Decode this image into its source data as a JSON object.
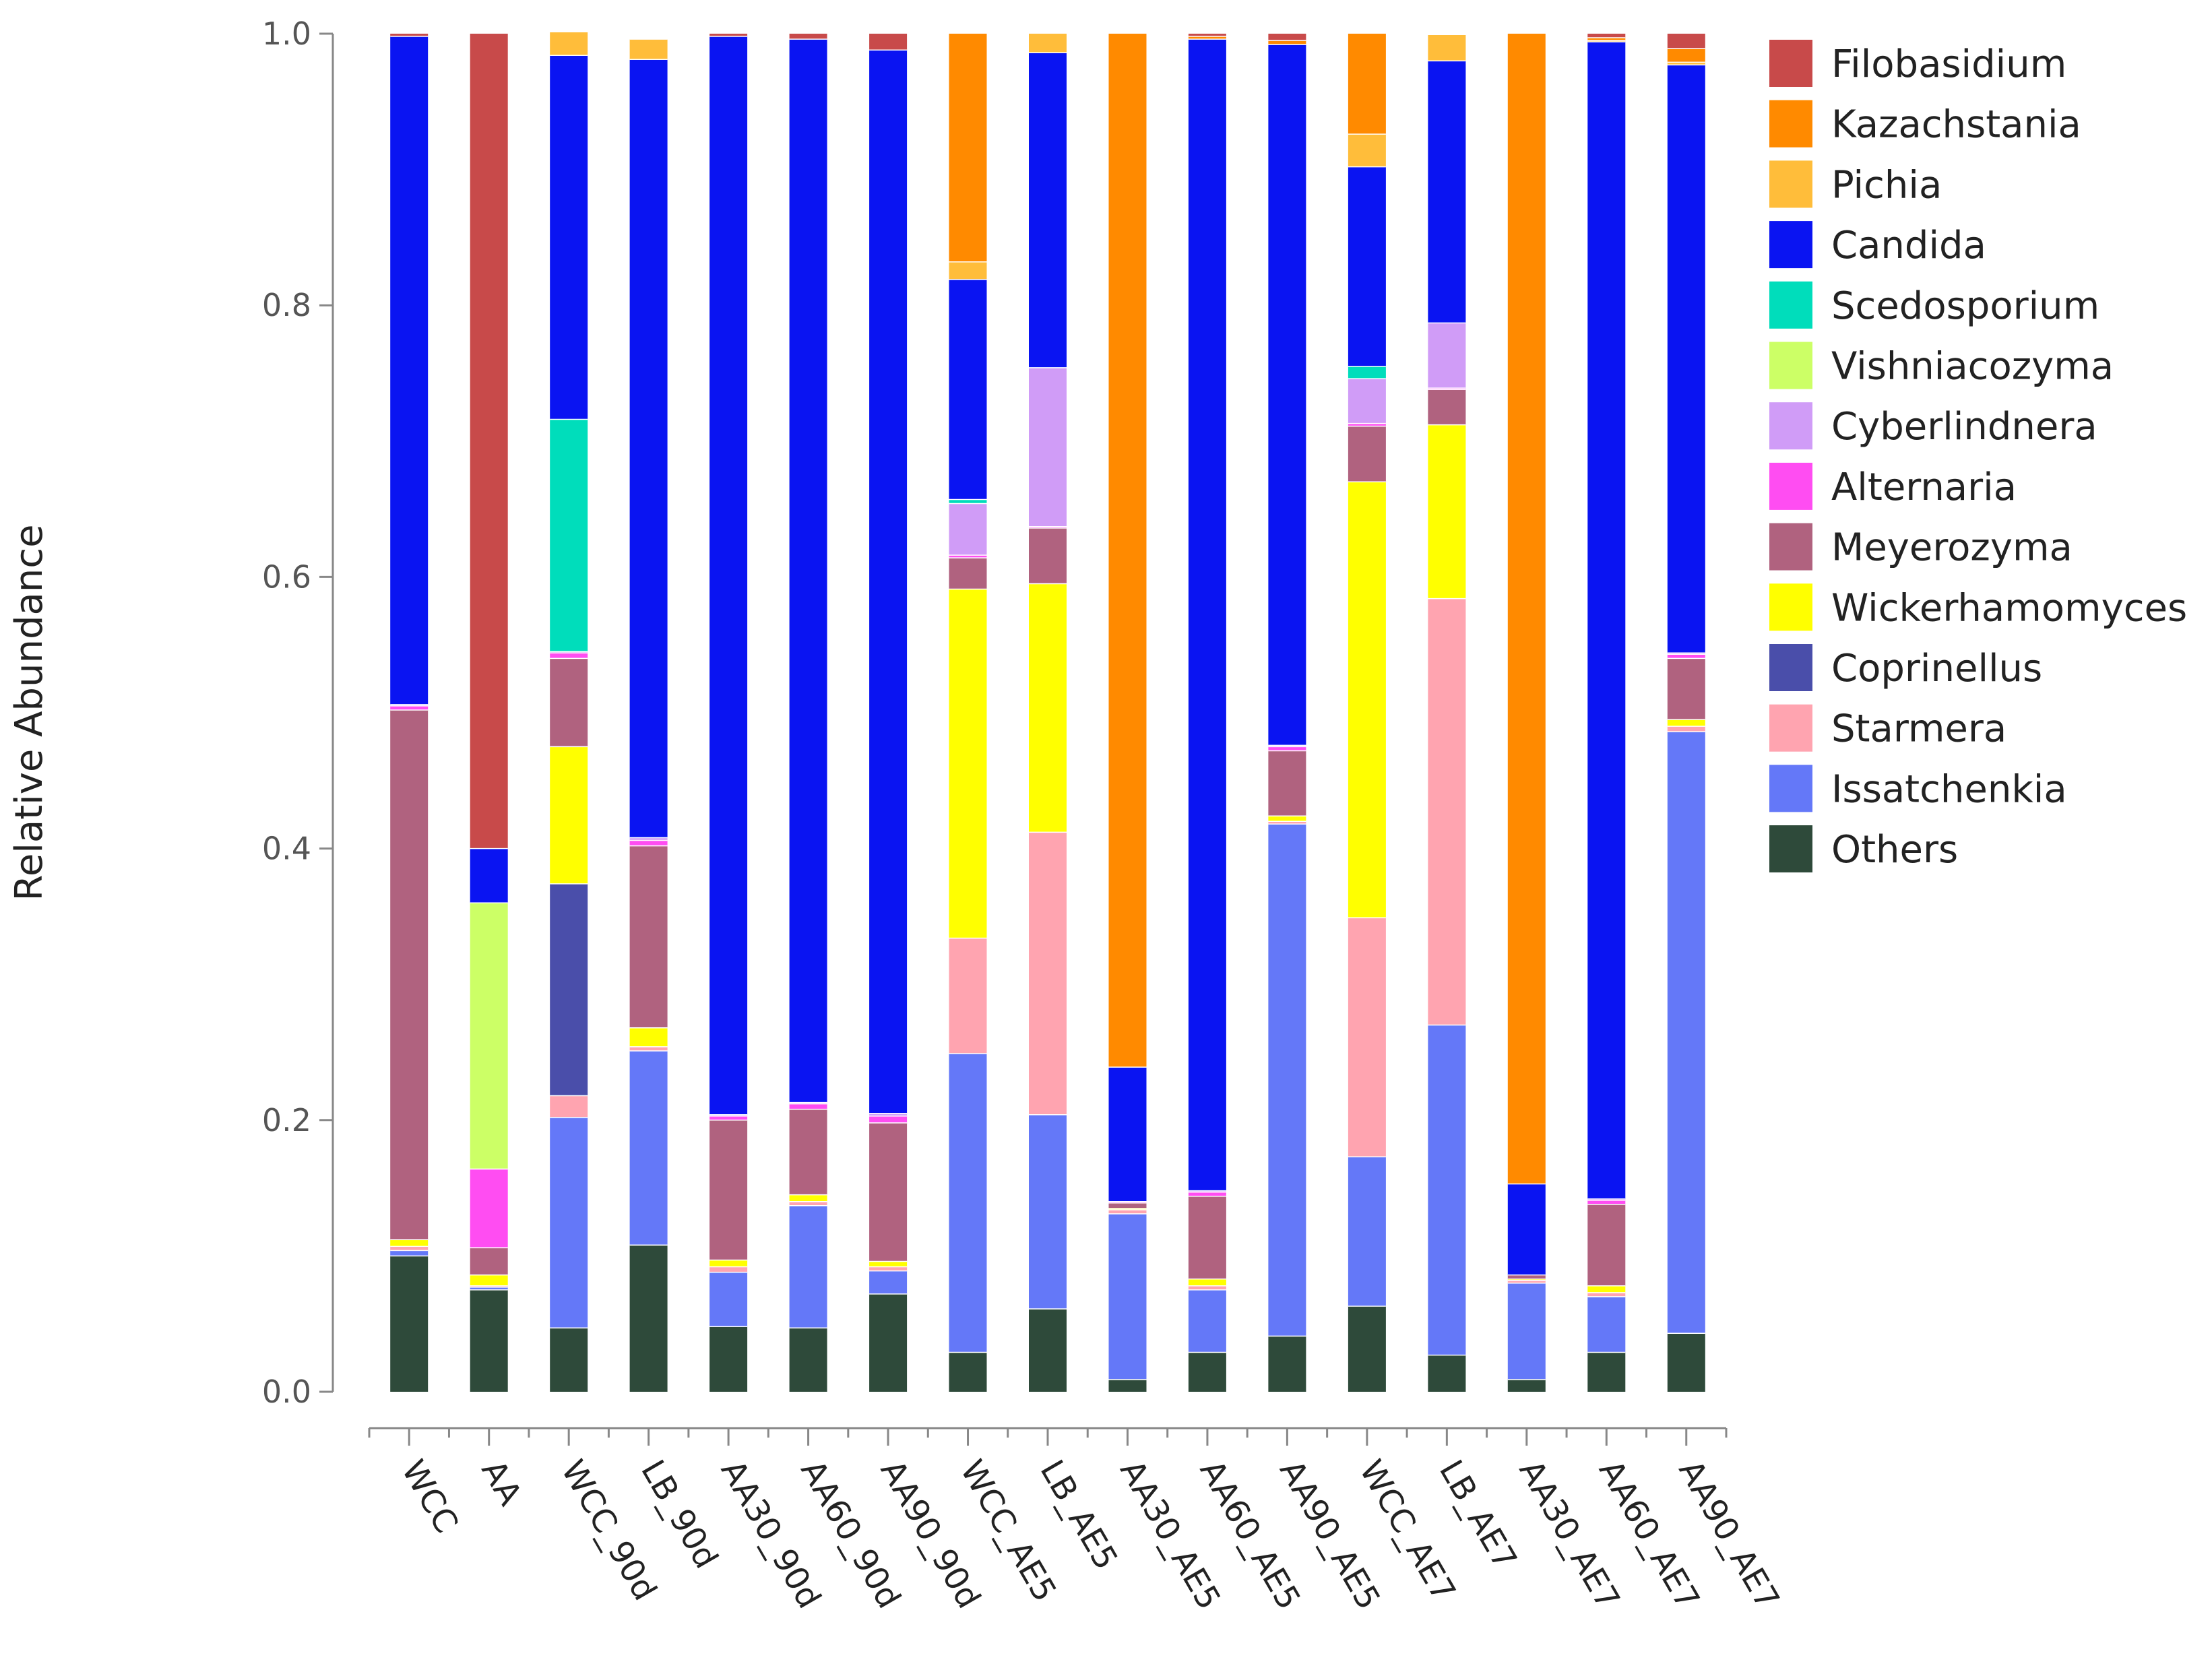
{
  "chart_data": {
    "type": "bar",
    "stacked": true,
    "title": "",
    "xlabel": "",
    "ylabel": "Relative Abundance",
    "ylim": [
      0,
      1
    ],
    "yticks": [
      "0.0",
      "0.2",
      "0.4",
      "0.6",
      "0.8",
      "1.0"
    ],
    "legend_position": "right",
    "categories": [
      "WCC",
      "AA",
      "WCC_90d",
      "LB_90d",
      "AA30_90d",
      "AA60_90d",
      "AA90_90d",
      "WCC_AE5",
      "LB_AE5",
      "AA30_AE5",
      "AA60_AE5",
      "AA90_AE5",
      "WCC_AE7",
      "LB_AE7",
      "AA30_AE7",
      "AA60_AE7",
      "AA90_AE7"
    ],
    "series": [
      {
        "name": "Others",
        "color": "#2e4a3a",
        "values": [
          0.1,
          0.075,
          0.047,
          0.108,
          0.048,
          0.047,
          0.072,
          0.029,
          0.061,
          0.009,
          0.029,
          0.041,
          0.063,
          0.027,
          0.009,
          0.029,
          0.043
        ]
      },
      {
        "name": "Issatchenkia",
        "color": "#6478f8",
        "values": [
          0.004,
          0.002,
          0.155,
          0.143,
          0.04,
          0.09,
          0.017,
          0.22,
          0.143,
          0.122,
          0.046,
          0.377,
          0.11,
          0.243,
          0.071,
          0.041,
          0.443
        ]
      },
      {
        "name": "Starmera",
        "color": "#ffa4b0",
        "values": [
          0.003,
          0.001,
          0.016,
          0.003,
          0.004,
          0.003,
          0.003,
          0.085,
          0.208,
          0.003,
          0.003,
          0.002,
          0.176,
          0.314,
          0.002,
          0.003,
          0.004
        ]
      },
      {
        "name": "Coprinellus",
        "color": "#4a4eaa",
        "values": [
          0.0,
          0.0,
          0.156,
          0.0,
          0.0,
          0.0,
          0.0,
          0.0,
          0.0,
          0.0,
          0.0,
          0.0,
          0.0,
          0.0,
          0.0,
          0.0,
          0.0
        ]
      },
      {
        "name": "Wickerhamomyces",
        "color": "#ffff00",
        "values": [
          0.005,
          0.008,
          0.101,
          0.014,
          0.005,
          0.005,
          0.004,
          0.257,
          0.183,
          0.001,
          0.005,
          0.004,
          0.321,
          0.128,
          0.001,
          0.005,
          0.005
        ]
      },
      {
        "name": "Meyerozyma",
        "color": "#b0627f",
        "values": [
          0.39,
          0.02,
          0.065,
          0.134,
          0.103,
          0.063,
          0.102,
          0.023,
          0.041,
          0.004,
          0.061,
          0.048,
          0.041,
          0.026,
          0.003,
          0.06,
          0.045
        ]
      },
      {
        "name": "Alternaria",
        "color": "#ff4df2",
        "values": [
          0.003,
          0.058,
          0.004,
          0.004,
          0.003,
          0.004,
          0.005,
          0.002,
          0.001,
          0.001,
          0.003,
          0.003,
          0.002,
          0.001,
          0.0,
          0.003,
          0.003
        ]
      },
      {
        "name": "Cyberlindnera",
        "color": "#d09cf7",
        "values": [
          0.001,
          0.0,
          0.001,
          0.002,
          0.001,
          0.001,
          0.002,
          0.038,
          0.117,
          0.0,
          0.001,
          0.001,
          0.033,
          0.048,
          0.0,
          0.001,
          0.001
        ]
      },
      {
        "name": "Vishniacozyma",
        "color": "#ccff66",
        "values": [
          0.0,
          0.196,
          0.0,
          0.0,
          0.0,
          0.0,
          0.0,
          0.0,
          0.0,
          0.0,
          0.0,
          0.0,
          0.0,
          0.0,
          0.0,
          0.0,
          0.0
        ]
      },
      {
        "name": "Scedosporium",
        "color": "#00ddbb",
        "values": [
          0.0,
          0.0,
          0.171,
          0.0,
          0.0,
          0.0,
          0.0,
          0.003,
          0.0,
          0.0,
          0.0,
          0.0,
          0.009,
          0.0,
          0.0,
          0.0,
          0.0
        ]
      },
      {
        "name": "Candida",
        "color": "#0a14f2",
        "values": [
          0.492,
          0.04,
          0.268,
          0.573,
          0.794,
          0.783,
          0.783,
          0.162,
          0.232,
          0.099,
          0.848,
          0.516,
          0.147,
          0.193,
          0.067,
          0.852,
          0.433
        ]
      },
      {
        "name": "Pichia",
        "color": "#ffbd3a",
        "values": [
          0.0,
          0.0,
          0.017,
          0.015,
          0.0,
          0.0,
          0.0,
          0.013,
          0.014,
          0.0,
          0.0,
          0.0,
          0.024,
          0.019,
          0.0,
          0.001,
          0.002
        ]
      },
      {
        "name": "Kazachstania",
        "color": "#ff8a00",
        "values": [
          0.0,
          0.0,
          0.0,
          0.0,
          0.0,
          0.0,
          0.0,
          0.168,
          0.0,
          0.761,
          0.002,
          0.003,
          0.074,
          0.0,
          0.847,
          0.002,
          0.01
        ]
      },
      {
        "name": "Filobasidium",
        "color": "#c84a4a",
        "values": [
          0.002,
          0.6,
          0.0,
          0.0,
          0.002,
          0.004,
          0.012,
          0.0,
          0.0,
          0.0,
          0.002,
          0.005,
          0.0,
          0.0,
          0.0,
          0.003,
          0.011
        ]
      }
    ]
  }
}
